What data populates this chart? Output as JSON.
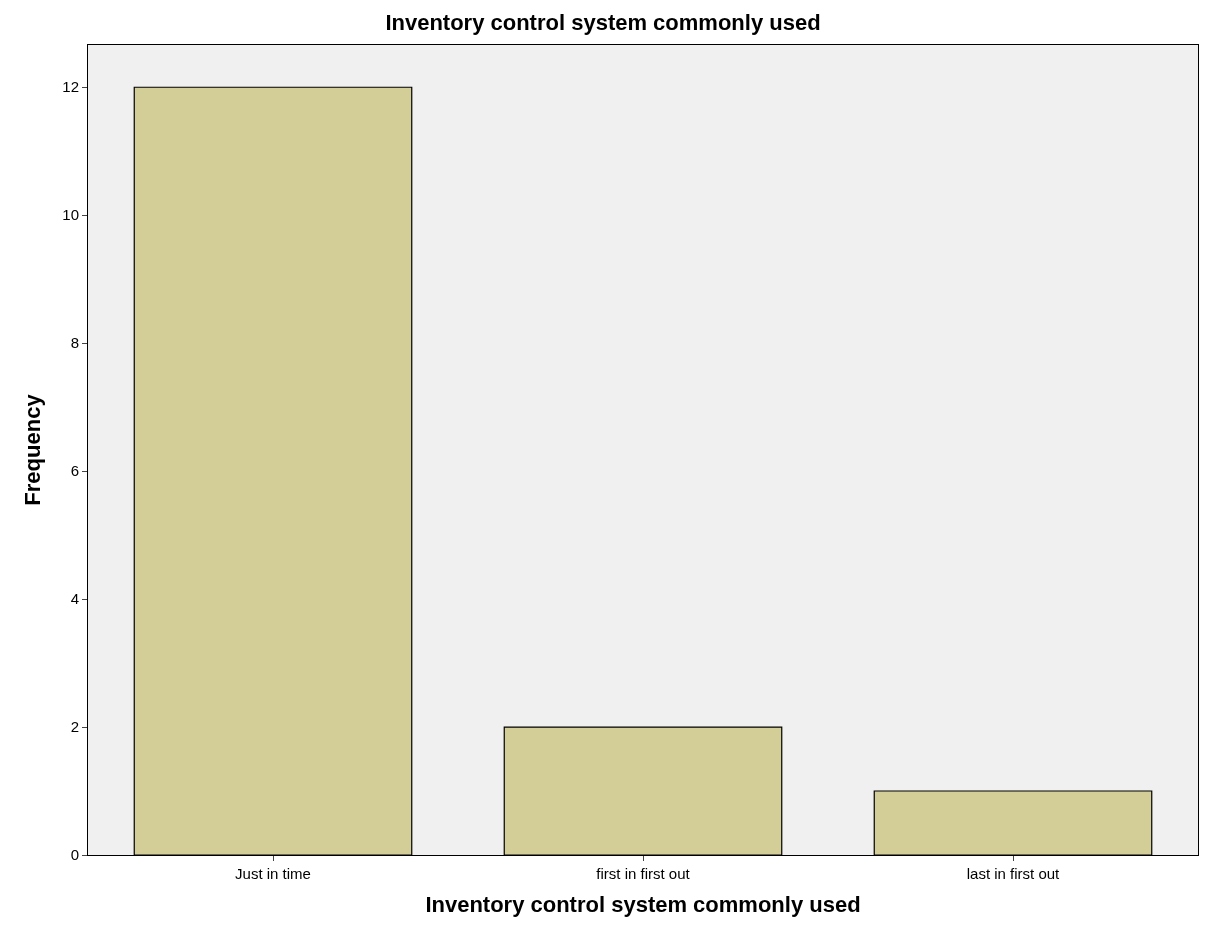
{
  "chart_data": {
    "type": "bar",
    "title": "Inventory control system commonly used",
    "xlabel": "Inventory control system commonly used",
    "ylabel": "Frequency",
    "categories": [
      "Just in time",
      "first in first out",
      "last in first out"
    ],
    "values": [
      12,
      2,
      1
    ],
    "color": "#d3ce98",
    "ylim": [
      0,
      12.66
    ],
    "yticks": [
      0,
      2,
      4,
      6,
      8,
      10,
      12
    ],
    "grid": false
  }
}
